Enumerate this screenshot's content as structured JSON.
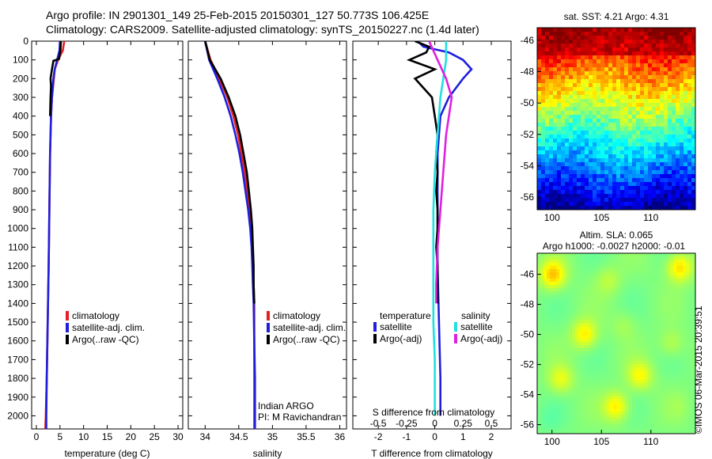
{
  "header": {
    "line1": "Argo profile: IN 2901301_149 25-Feb-2015 20150301_127 50.773S 106.425E",
    "line2": "Climatology: CARS2009. Satellite-adjusted climatology: synTS_20150227.nc (1.4d later)"
  },
  "watermark": "©IMOS 06-Mar-2015 20:39:51",
  "colors": {
    "climatology": "#e52020",
    "satellite": "#1f1fdc",
    "argo": "#000000",
    "satellite_s": "#22e0e0",
    "argo_s": "#e020e0"
  },
  "chart_data": [
    {
      "type": "line",
      "xlabel": "temperature (deg C)",
      "ylabel": "",
      "xlim": [
        -1,
        31
      ],
      "ylim": [
        2070,
        0
      ],
      "xticks": [
        0,
        5,
        10,
        15,
        20,
        25,
        30
      ],
      "yticks": [
        0,
        100,
        200,
        300,
        400,
        500,
        600,
        700,
        800,
        900,
        1000,
        1100,
        1200,
        1300,
        1400,
        1500,
        1600,
        1700,
        1800,
        1900,
        2000
      ],
      "legend": [
        "climatology",
        "satellite-adj. clim.",
        "Argo(..raw -QC)"
      ],
      "series": [
        {
          "name": "climatology",
          "color": "#e52020",
          "depth": [
            0,
            50,
            100,
            150,
            200,
            300,
            400,
            600,
            800,
            1000,
            1200,
            1500,
            1800,
            2000,
            2070
          ],
          "values": [
            5.9,
            5.6,
            4.6,
            3.9,
            3.7,
            3.3,
            3.1,
            2.9,
            2.8,
            2.7,
            2.6,
            2.4,
            2.2,
            2.0,
            1.9
          ]
        },
        {
          "name": "satellite-adj. clim.",
          "color": "#1f1fdc",
          "depth": [
            0,
            50,
            100,
            150,
            200,
            300,
            400,
            600,
            800,
            1000,
            1200,
            1500,
            1800,
            2000,
            2070
          ],
          "values": [
            5.0,
            4.9,
            4.4,
            3.9,
            3.6,
            3.3,
            3.1,
            2.9,
            2.8,
            2.7,
            2.6,
            2.4,
            2.2,
            2.1,
            2.1
          ]
        },
        {
          "name": "Argo(..raw -QC)",
          "color": "#000000",
          "depth": [
            0,
            50,
            95,
            105,
            150,
            200,
            240,
            300,
            400
          ],
          "values": [
            5.2,
            5.1,
            4.8,
            3.6,
            3.3,
            3.0,
            3.1,
            3.0,
            2.9
          ]
        }
      ]
    },
    {
      "type": "line",
      "xlabel": "salinity",
      "xlim": [
        33.75,
        36.1
      ],
      "ylim": [
        2070,
        0
      ],
      "xticks": [
        34,
        34.5,
        35,
        35.5,
        36
      ],
      "legend": [
        "climatology",
        "satellite-adj. clim.",
        "Argo(..raw -QC)"
      ],
      "note": [
        "Indian ARGO",
        "PI: M Ravichandran"
      ],
      "series": [
        {
          "name": "climatology",
          "color": "#e52020",
          "depth": [
            0,
            100,
            200,
            300,
            400,
            500,
            600,
            700,
            800,
            900,
            1000,
            1100,
            1200,
            1300,
            1400,
            1600,
            1800,
            2000,
            2070
          ],
          "values": [
            34.0,
            34.08,
            34.21,
            34.33,
            34.42,
            34.49,
            34.54,
            34.59,
            34.63,
            34.66,
            34.68,
            34.7,
            34.71,
            34.72,
            34.73,
            34.73,
            34.73,
            34.73,
            34.73
          ]
        },
        {
          "name": "satellite-adj. clim.",
          "color": "#1f1fdc",
          "depth": [
            0,
            100,
            200,
            300,
            400,
            500,
            600,
            700,
            800,
            900,
            1000,
            1100,
            1200,
            1300,
            1400,
            1600,
            1800,
            2000,
            2070
          ],
          "values": [
            34.0,
            34.06,
            34.18,
            34.29,
            34.38,
            34.45,
            34.51,
            34.56,
            34.6,
            34.64,
            34.67,
            34.69,
            34.7,
            34.71,
            34.72,
            34.73,
            34.74,
            34.74,
            34.74
          ]
        },
        {
          "name": "Argo(..raw -QC)",
          "color": "#000000",
          "depth": [
            0,
            100,
            200,
            300,
            400,
            500,
            600,
            700,
            800,
            900,
            1000,
            1100,
            1200,
            1300,
            1400
          ],
          "values": [
            34.0,
            34.07,
            34.23,
            34.35,
            34.45,
            34.52,
            34.57,
            34.62,
            34.65,
            34.68,
            34.7,
            34.71,
            34.72,
            34.72,
            34.73
          ]
        }
      ]
    },
    {
      "type": "line",
      "xlabel": "T difference from climatology",
      "top_label": "S difference from climatology",
      "xlim": [
        -2.9,
        2.7
      ],
      "ylim": [
        2070,
        0
      ],
      "xticks": [
        -2,
        -1,
        0,
        1,
        2
      ],
      "top_ticks": [
        "-0.5",
        "-0.25",
        "0",
        "0.25",
        "0.5"
      ],
      "top_tick_positions": [
        -2,
        -1,
        0,
        1,
        2
      ],
      "legend_groups": {
        "temperature": [
          "satellite",
          "Argo(-adj)"
        ],
        "salinity": [
          "satellite",
          "Argo(-adj)"
        ]
      },
      "legend_headings": [
        "temperature",
        "salinity"
      ],
      "series": [
        {
          "name": "satellite",
          "group": "temperature",
          "color": "#1f1fdc",
          "depth": [
            0,
            30,
            60,
            100,
            150,
            200,
            300,
            400,
            600,
            900,
            1200,
            1500,
            1800,
            2000
          ],
          "values": [
            -0.6,
            -0.4,
            0.5,
            1.0,
            1.3,
            1.0,
            0.5,
            0.2,
            0.1,
            0.1,
            0.1,
            0.15,
            0.2,
            0.2
          ]
        },
        {
          "name": "Argo(-adj)",
          "group": "temperature",
          "color": "#000000",
          "depth": [
            0,
            30,
            60,
            100,
            150,
            200,
            300,
            400,
            500,
            600,
            700,
            800,
            900,
            1000,
            1100,
            1200,
            1300,
            1400
          ],
          "values": [
            -0.7,
            -0.2,
            -0.3,
            -0.9,
            0.0,
            -0.7,
            -0.1,
            0.0,
            0.1,
            0.05,
            0.1,
            0.05,
            0.1,
            0.1,
            0.05,
            0.1,
            0.1,
            0.1
          ]
        },
        {
          "name": "satellite",
          "group": "salinity",
          "color": "#22e0e0",
          "depth": [
            0,
            100,
            200,
            300,
            500,
            700,
            900,
            1100,
            1300,
            1500,
            1700,
            2000
          ],
          "values": [
            0.4,
            0.4,
            0.3,
            0.2,
            0.1,
            0.0,
            -0.05,
            -0.05,
            -0.05,
            -0.05,
            0.0,
            0.0
          ]
        },
        {
          "name": "Argo(-adj)",
          "group": "salinity",
          "color": "#e020e0",
          "depth": [
            0,
            100,
            200,
            300,
            500,
            700,
            900,
            1100,
            1300,
            1400
          ],
          "values": [
            -0.2,
            0.1,
            0.4,
            0.6,
            0.4,
            0.3,
            0.2,
            0.1,
            0.05,
            0.05
          ]
        }
      ]
    },
    {
      "type": "heatmap",
      "title": "sat. SST: 4.21  Argo: 4.31",
      "xlim": [
        98.5,
        114.5
      ],
      "ylim": [
        -56.8,
        -45.2
      ],
      "xticks": [
        100,
        105,
        110
      ],
      "yticks": [
        -46,
        -48,
        -50,
        -52,
        -54,
        -56
      ],
      "colormap": "jet",
      "marker": [
        106.425,
        -50.773
      ]
    },
    {
      "type": "heatmap",
      "title": "Altim. SLA: 0.065",
      "subtitle": "Argo h1000: -0.0027 h2000: -0.01",
      "xlim": [
        98.5,
        114.5
      ],
      "ylim": [
        -56.6,
        -44.6
      ],
      "xticks": [
        100,
        105,
        110
      ],
      "yticks": [
        -46,
        -48,
        -50,
        -52,
        -54,
        -56
      ],
      "colormap": "jet",
      "marker": [
        106.425,
        -50.773
      ]
    }
  ]
}
